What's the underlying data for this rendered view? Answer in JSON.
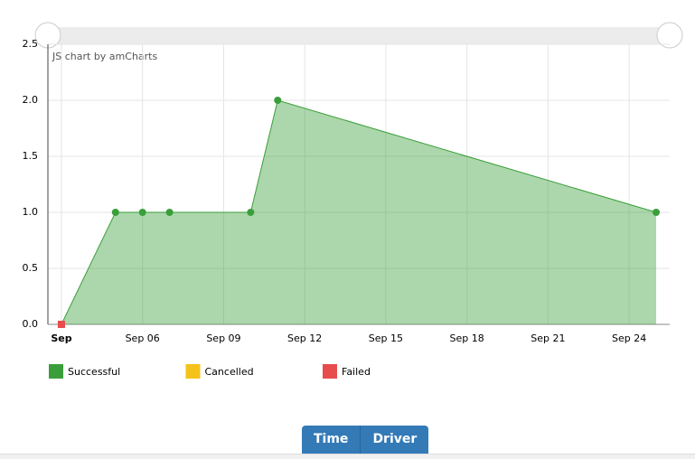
{
  "chart_data": {
    "type": "area",
    "credit": "JS chart by amCharts",
    "x": [
      3,
      5,
      6,
      7,
      10,
      11,
      25
    ],
    "series": [
      {
        "name": "Successful",
        "color": "#3a9f3a",
        "values": [
          0,
          1,
          1,
          1,
          1,
          2,
          1
        ]
      },
      {
        "name": "Cancelled",
        "color": "#f5c21b",
        "values": [
          null,
          null,
          null,
          null,
          null,
          null,
          null
        ]
      },
      {
        "name": "Failed",
        "color": "#e84c4c",
        "values": [
          0,
          null,
          null,
          null,
          null,
          null,
          null
        ]
      }
    ],
    "xlim": [
      2.5,
      25.5
    ],
    "xticks": [
      {
        "value": 3,
        "label": "Sep"
      },
      {
        "value": 6,
        "label": "Sep 06"
      },
      {
        "value": 9,
        "label": "Sep 09"
      },
      {
        "value": 12,
        "label": "Sep 12"
      },
      {
        "value": 15,
        "label": "Sep 15"
      },
      {
        "value": 18,
        "label": "Sep 18"
      },
      {
        "value": 21,
        "label": "Sep 21"
      },
      {
        "value": 24,
        "label": "Sep 24"
      }
    ],
    "ylim": [
      0,
      2.5
    ],
    "yticks": [
      {
        "value": 0,
        "label": "0.0"
      },
      0.5,
      {
        "value": 1,
        "label": "1.0"
      },
      1.5,
      {
        "value": 2,
        "label": "2.0"
      },
      2.5
    ],
    "grid": true
  },
  "buttons": [
    "Time",
    "Driver"
  ]
}
